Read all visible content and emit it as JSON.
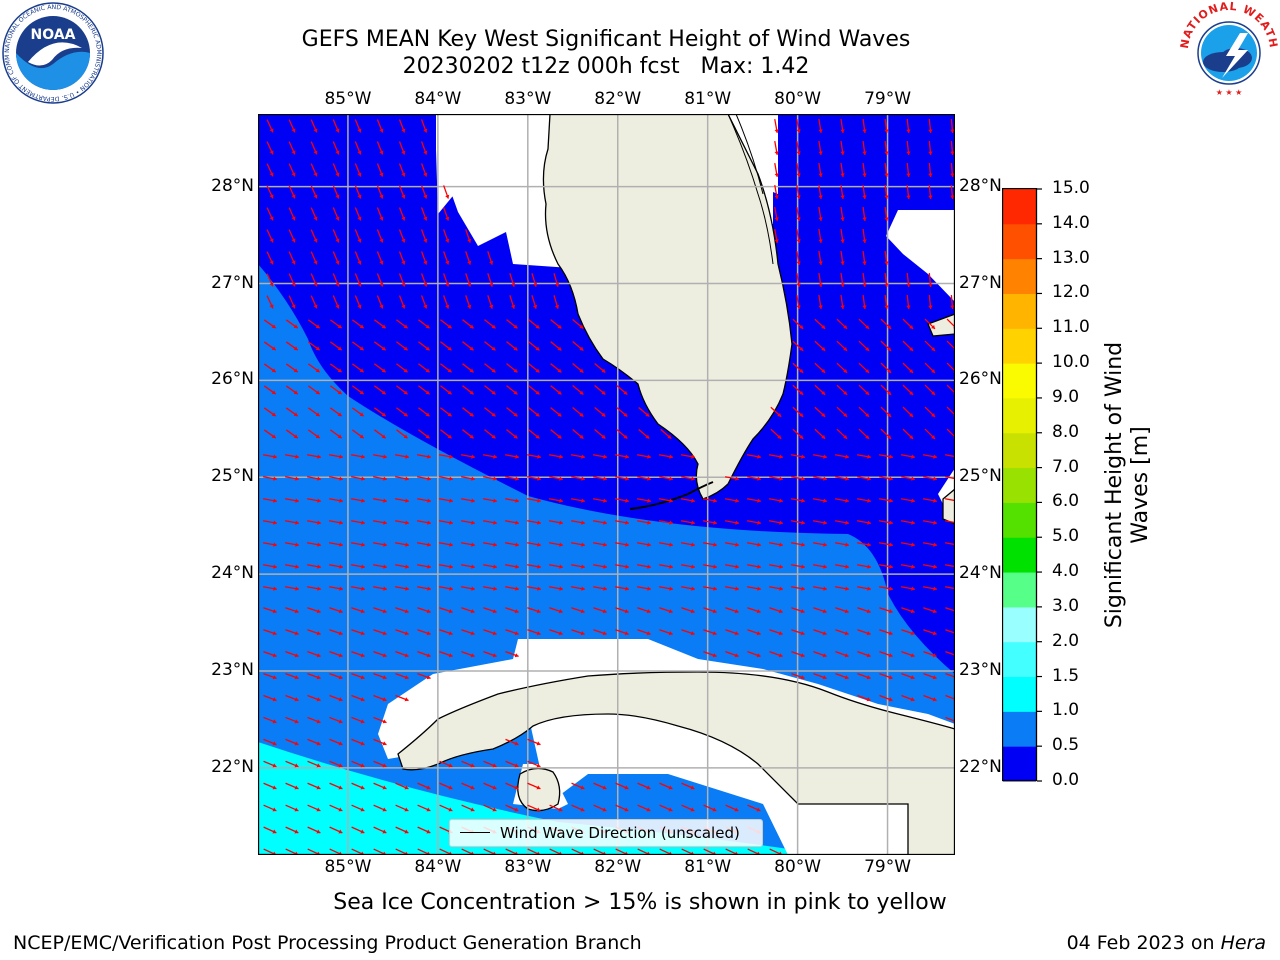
{
  "title": {
    "line1": "GEFS MEAN Key West Significant Height of Wind Waves",
    "line2": "20230202 t12z 000h fcst   Max: 1.42"
  },
  "map": {
    "region": "Key West",
    "lon_labels": [
      "85°W",
      "84°W",
      "83°W",
      "82°W",
      "81°W",
      "80°W",
      "79°W"
    ],
    "lat_labels": [
      "28°N",
      "27°N",
      "26°N",
      "25°N",
      "24°N",
      "23°N",
      "22°N"
    ],
    "lon_range": [
      -86.0,
      -78.25
    ],
    "lat_range": [
      21.1,
      28.75
    ],
    "legend_label": "Wind Wave Direction (unscaled)",
    "arrow_color": "#ff0000",
    "land_color": "#eeeee0",
    "grid_color": "#b0b0b0"
  },
  "colorbar": {
    "title": "Significant Height of Wind Waves [m]",
    "title_lines": [
      "Significant Height of Wind",
      "Waves [m]"
    ],
    "tick_labels": [
      "0.0",
      "0.5",
      "1.0",
      "1.5",
      "2.0",
      "3.0",
      "4.0",
      "5.0",
      "6.0",
      "7.0",
      "8.0",
      "9.0",
      "10.0",
      "11.0",
      "12.0",
      "13.0",
      "14.0",
      "15.0"
    ],
    "colors": [
      "#0000f5",
      "#0a7cf5",
      "#00ffff",
      "#44ffff",
      "#99ffff",
      "#55ff88",
      "#00e100",
      "#55e100",
      "#99e100",
      "#c8e100",
      "#e6f000",
      "#fafa00",
      "#ffd200",
      "#ffb400",
      "#ff8200",
      "#ff5000",
      "#ff2800"
    ]
  },
  "ice_note": "Sea Ice Concentration > 15% is shown in pink to yellow",
  "footer": {
    "left": "NCEP/EMC/Verification Post Processing Product Generation Branch",
    "right_date": "04 Feb 2023 on ",
    "right_host": "Hera"
  },
  "logos": {
    "noaa_text": "NOAA",
    "noaa_ring_text": "NATIONAL OCEANIC AND ATMOSPHERIC ADMINISTRATION • U.S. DEPARTMENT OF COMMERCE",
    "nws_ring_text": "NATIONAL WEATHER SERVICE"
  }
}
